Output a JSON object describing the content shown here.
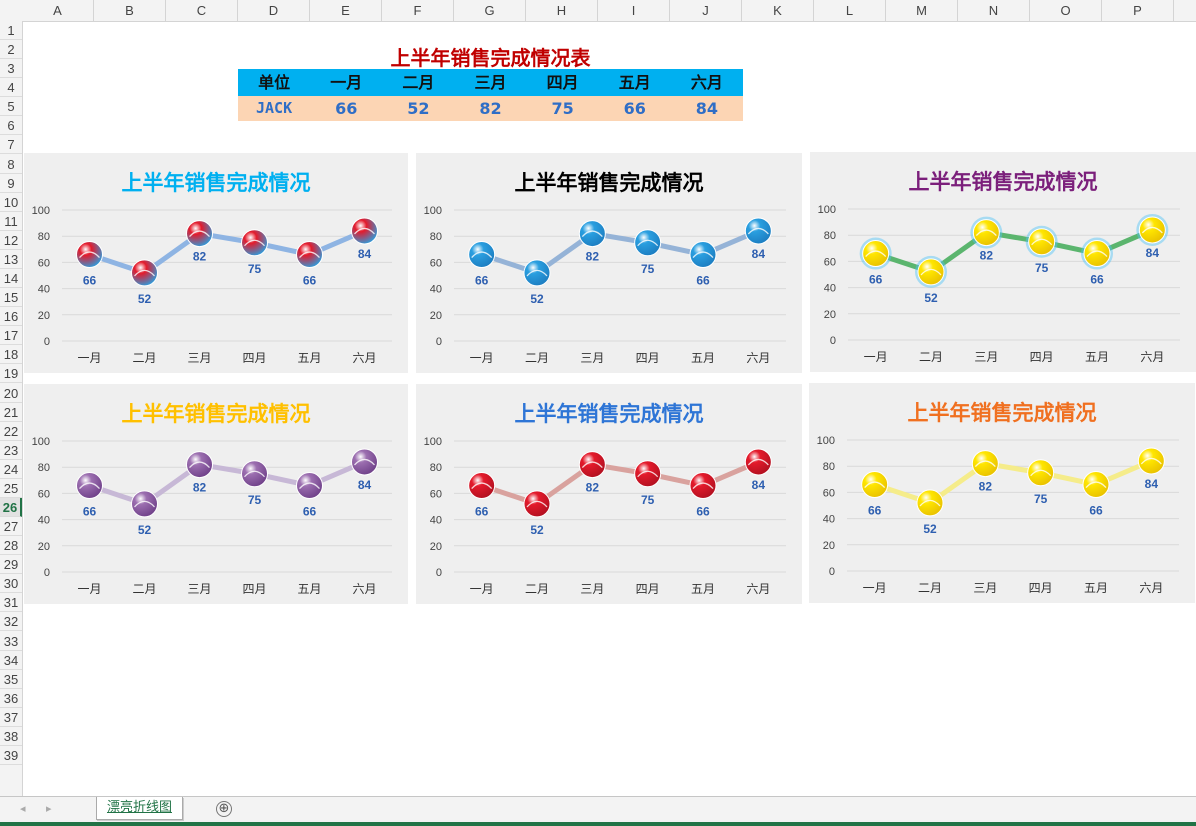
{
  "sheet": {
    "columns": [
      "A",
      "B",
      "C",
      "D",
      "E",
      "F",
      "G",
      "H",
      "I",
      "J",
      "K",
      "L",
      "M",
      "N",
      "O",
      "P"
    ],
    "rows": [
      "1",
      "2",
      "3",
      "4",
      "5",
      "6",
      "7",
      "8",
      "9",
      "10",
      "11",
      "12",
      "13",
      "14",
      "15",
      "16",
      "17",
      "18",
      "19",
      "20",
      "21",
      "22",
      "23",
      "24",
      "25",
      "26",
      "27",
      "28",
      "29",
      "30",
      "31",
      "32",
      "33",
      "34",
      "35",
      "36",
      "37",
      "38",
      "39"
    ],
    "selected_row": "26",
    "tab_name": "漂亮折线图",
    "add_sheet_label": "⊕"
  },
  "table": {
    "title": "上半年销售完成情况表",
    "headers": [
      "单位",
      "一月",
      "二月",
      "三月",
      "四月",
      "五月",
      "六月"
    ],
    "row": [
      "JACK",
      "66",
      "52",
      "82",
      "75",
      "66",
      "84"
    ]
  },
  "chart_data": [
    {
      "type": "line",
      "title": "上半年销售完成情况",
      "categories": [
        "一月",
        "二月",
        "三月",
        "四月",
        "五月",
        "六月"
      ],
      "values": [
        66,
        52,
        82,
        75,
        66,
        84
      ],
      "ylim": [
        0,
        100
      ],
      "yticks": [
        0,
        20,
        40,
        60,
        80,
        100
      ],
      "title_color": "#00b0f0",
      "line_color": "#8eb4e3",
      "marker": "ball-red-blue"
    },
    {
      "type": "line",
      "title": "上半年销售完成情况",
      "categories": [
        "一月",
        "二月",
        "三月",
        "四月",
        "五月",
        "六月"
      ],
      "values": [
        66,
        52,
        82,
        75,
        66,
        84
      ],
      "ylim": [
        0,
        100
      ],
      "yticks": [
        0,
        20,
        40,
        60,
        80,
        100
      ],
      "title_color": "#000000",
      "line_color": "#95b3d7",
      "marker": "ball-blue"
    },
    {
      "type": "line",
      "title": "上半年销售完成情况",
      "categories": [
        "一月",
        "二月",
        "三月",
        "四月",
        "五月",
        "六月"
      ],
      "values": [
        66,
        52,
        82,
        75,
        66,
        84
      ],
      "ylim": [
        0,
        100
      ],
      "yticks": [
        0,
        20,
        40,
        60,
        80,
        100
      ],
      "title_color": "#7b1f7b",
      "line_color": "#5bb56e",
      "marker": "ball-yellow-glow"
    },
    {
      "type": "line",
      "title": "上半年销售完成情况",
      "categories": [
        "一月",
        "二月",
        "三月",
        "四月",
        "五月",
        "六月"
      ],
      "values": [
        66,
        52,
        82,
        75,
        66,
        84
      ],
      "ylim": [
        0,
        100
      ],
      "yticks": [
        0,
        20,
        40,
        60,
        80,
        100
      ],
      "title_color": "#ffc000",
      "line_color": "#c7b8d6",
      "marker": "ball-purple"
    },
    {
      "type": "line",
      "title": "上半年销售完成情况",
      "categories": [
        "一月",
        "二月",
        "三月",
        "四月",
        "五月",
        "六月"
      ],
      "values": [
        66,
        52,
        82,
        75,
        66,
        84
      ],
      "ylim": [
        0,
        100
      ],
      "yticks": [
        0,
        20,
        40,
        60,
        80,
        100
      ],
      "title_color": "#2e75d6",
      "line_color": "#d9a29e",
      "marker": "ball-red"
    },
    {
      "type": "line",
      "title": "上半年销售完成情况",
      "categories": [
        "一月",
        "二月",
        "三月",
        "四月",
        "五月",
        "六月"
      ],
      "values": [
        66,
        52,
        82,
        75,
        66,
        84
      ],
      "ylim": [
        0,
        100
      ],
      "yticks": [
        0,
        20,
        40,
        60,
        80,
        100
      ],
      "title_color": "#f07020",
      "line_color": "#f5ec8a",
      "marker": "ball-yellow"
    }
  ]
}
